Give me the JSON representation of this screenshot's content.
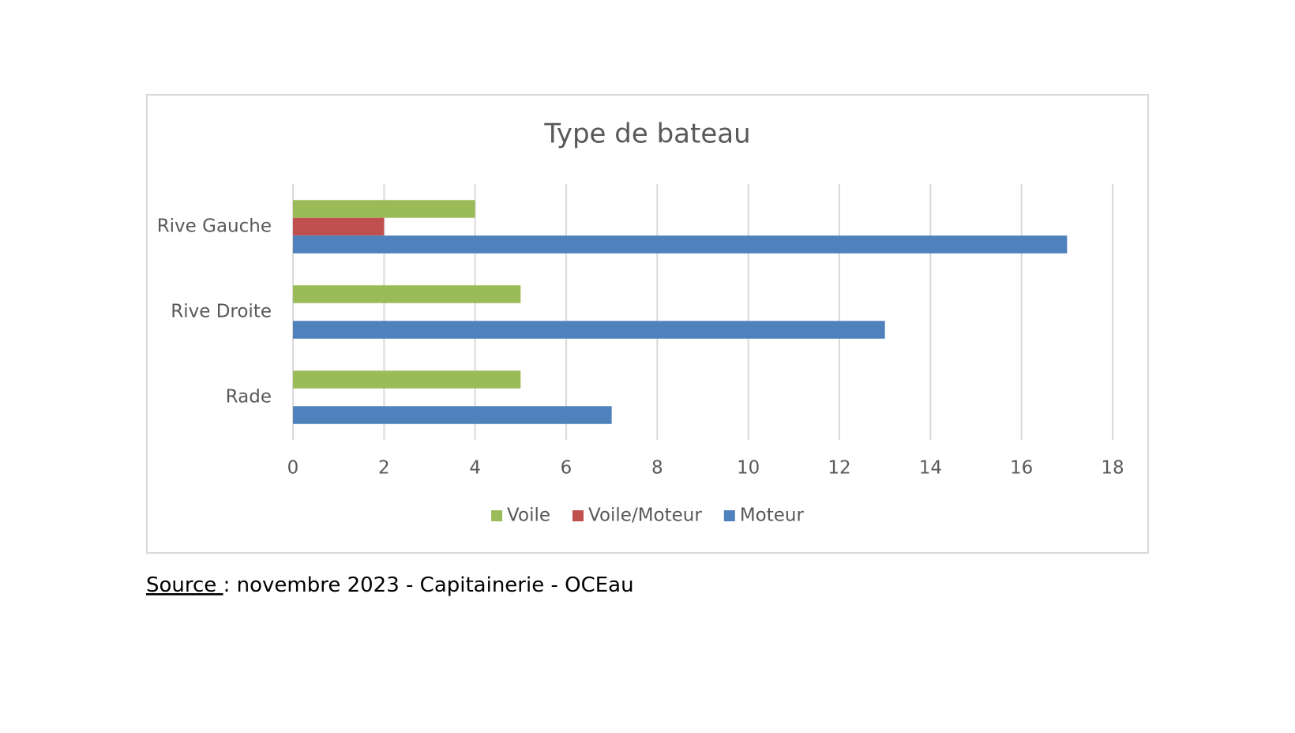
{
  "chart_data": {
    "type": "bar",
    "orientation": "horizontal",
    "title": "Type de bateau",
    "categories": [
      "Rive Gauche",
      "Rive Droite",
      "Rade"
    ],
    "series": [
      {
        "name": "Voile",
        "color": "#9bbb59",
        "values": [
          4,
          5,
          5
        ]
      },
      {
        "name": "Voile/Moteur",
        "color": "#c0504d",
        "values": [
          2,
          0,
          0
        ]
      },
      {
        "name": "Moteur",
        "color": "#4f81bd",
        "values": [
          17,
          13,
          7
        ]
      }
    ],
    "xlim": [
      0,
      18
    ],
    "xticks": [
      0,
      2,
      4,
      6,
      8,
      10,
      12,
      14,
      16,
      18
    ],
    "grid": true,
    "legend": "bottom"
  },
  "caption": {
    "label": "Source ",
    "text": ": novembre 2023 - Capitainerie - OCEau"
  }
}
